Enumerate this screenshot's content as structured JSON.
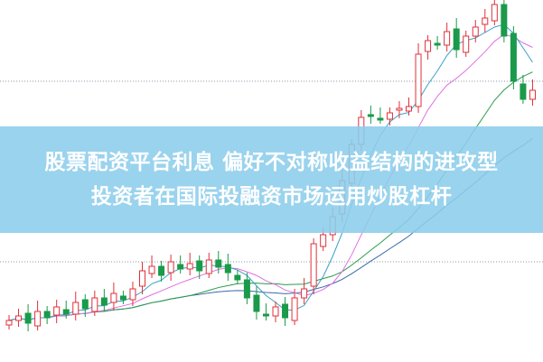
{
  "chart_data": {
    "type": "candlestick",
    "title": "",
    "grid": true,
    "colors": {
      "up": "#e0303a",
      "down": "#1a9a4a",
      "ma5": "#3aa0c8",
      "ma10": "#e070e0",
      "ma20": "#2a9a4a",
      "ma30": "#3a6aa8",
      "grid": "#8899aa"
    },
    "close": [
      45,
      50,
      42,
      55,
      48,
      60,
      52,
      65,
      58,
      70,
      62,
      75,
      68,
      80,
      100,
      105,
      95,
      110,
      102,
      108,
      100,
      112,
      104,
      98,
      90,
      70,
      55,
      50,
      60,
      48,
      70,
      80,
      130,
      140,
      160,
      200,
      240,
      270,
      272,
      268,
      275,
      280,
      282,
      340,
      355,
      350,
      365,
      345,
      360,
      370,
      380,
      395,
      360,
      310,
      290,
      300
    ]
  },
  "banner": {
    "line1": "股票配资平台利息 偏好不对称收益结构的进攻型",
    "line2": "投资者在国际投融资市场运用炒股杠杆"
  }
}
